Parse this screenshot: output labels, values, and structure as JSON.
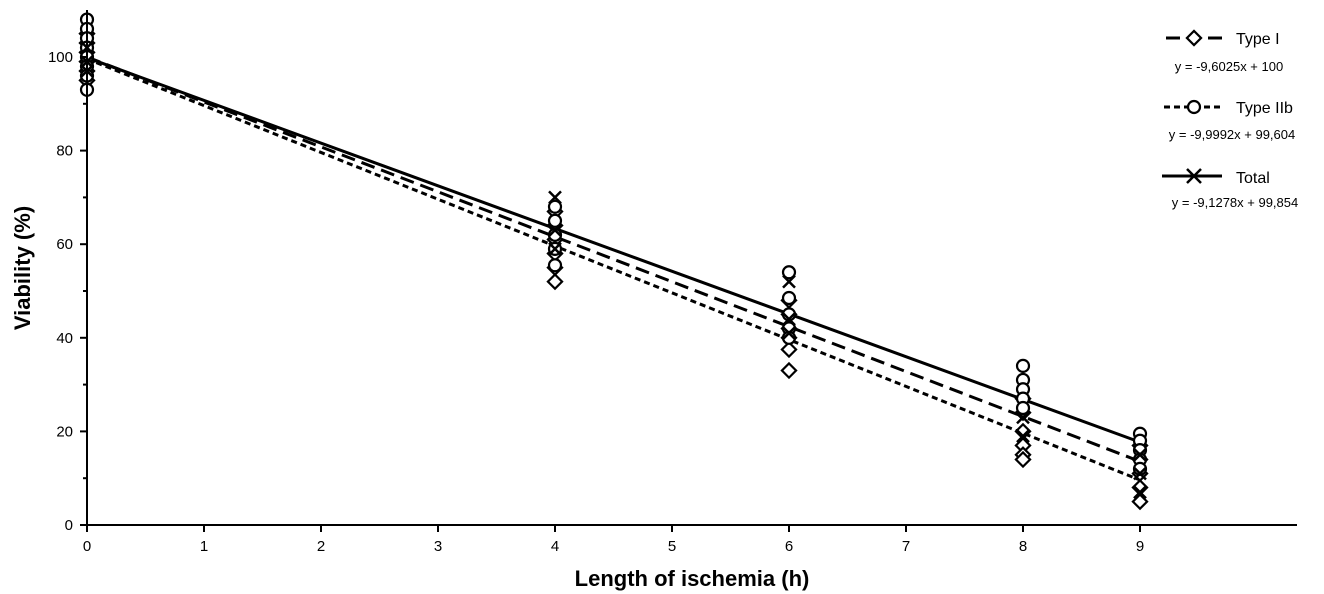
{
  "chart_data": {
    "type": "scatter",
    "xlabel": "Length of ischemia (h)",
    "ylabel": "Viability (%)",
    "xlim": [
      0,
      9.4
    ],
    "ylim": [
      0,
      108
    ],
    "xticks": [
      0,
      1,
      2,
      3,
      4,
      5,
      6,
      7,
      8,
      9
    ],
    "yticks": [
      0,
      20,
      40,
      60,
      80,
      100
    ],
    "grid": false,
    "legend_position": "top-right",
    "series": [
      {
        "name": "Type I",
        "equation": "y = -9,6025x + 100",
        "marker": "diamond",
        "line_style": "long-dash",
        "fit": {
          "slope": -9.6025,
          "intercept": 100,
          "x_range": [
            0,
            9
          ]
        },
        "points": [
          {
            "x": 0,
            "y": 105
          },
          {
            "x": 0,
            "y": 103
          },
          {
            "x": 0,
            "y": 101
          },
          {
            "x": 0,
            "y": 99
          },
          {
            "x": 0,
            "y": 97
          },
          {
            "x": 0,
            "y": 95
          },
          {
            "x": 4,
            "y": 67
          },
          {
            "x": 4,
            "y": 64
          },
          {
            "x": 4,
            "y": 61
          },
          {
            "x": 4,
            "y": 58
          },
          {
            "x": 4,
            "y": 55
          },
          {
            "x": 4,
            "y": 52
          },
          {
            "x": 6,
            "y": 48
          },
          {
            "x": 6,
            "y": 45
          },
          {
            "x": 6,
            "y": 42
          },
          {
            "x": 6,
            "y": 40
          },
          {
            "x": 6,
            "y": 37.5
          },
          {
            "x": 6,
            "y": 33
          },
          {
            "x": 8,
            "y": 27
          },
          {
            "x": 8,
            "y": 24
          },
          {
            "x": 8,
            "y": 20
          },
          {
            "x": 8,
            "y": 17
          },
          {
            "x": 8,
            "y": 15
          },
          {
            "x": 8,
            "y": 14
          },
          {
            "x": 9,
            "y": 17
          },
          {
            "x": 9,
            "y": 14
          },
          {
            "x": 9,
            "y": 11
          },
          {
            "x": 9,
            "y": 8
          },
          {
            "x": 9,
            "y": 5
          }
        ]
      },
      {
        "name": "Type IIb",
        "equation": "y = -9,9992x + 99,604",
        "marker": "circle",
        "line_style": "short-dash",
        "fit": {
          "slope": -9.9992,
          "intercept": 99.604,
          "x_range": [
            0,
            9
          ]
        },
        "points": [
          {
            "x": 0,
            "y": 108
          },
          {
            "x": 0,
            "y": 106
          },
          {
            "x": 0,
            "y": 104
          },
          {
            "x": 0,
            "y": 102
          },
          {
            "x": 0,
            "y": 100
          },
          {
            "x": 0,
            "y": 98
          },
          {
            "x": 0,
            "y": 96
          },
          {
            "x": 0,
            "y": 93
          },
          {
            "x": 4,
            "y": 68
          },
          {
            "x": 4,
            "y": 65
          },
          {
            "x": 4,
            "y": 62
          },
          {
            "x": 4,
            "y": 59
          },
          {
            "x": 4,
            "y": 55.5
          },
          {
            "x": 6,
            "y": 54
          },
          {
            "x": 6,
            "y": 48.5
          },
          {
            "x": 6,
            "y": 45
          },
          {
            "x": 6,
            "y": 42
          },
          {
            "x": 6,
            "y": 40
          },
          {
            "x": 8,
            "y": 34
          },
          {
            "x": 8,
            "y": 31
          },
          {
            "x": 8,
            "y": 29
          },
          {
            "x": 8,
            "y": 27
          },
          {
            "x": 8,
            "y": 25
          },
          {
            "x": 9,
            "y": 19.5
          },
          {
            "x": 9,
            "y": 18
          },
          {
            "x": 9,
            "y": 16
          },
          {
            "x": 9,
            "y": 14
          },
          {
            "x": 9,
            "y": 12
          }
        ]
      },
      {
        "name": "Total",
        "equation": "y = -9,1278x + 99,854",
        "marker": "x",
        "line_style": "solid",
        "fit": {
          "slope": -9.1278,
          "intercept": 99.854,
          "x_range": [
            0,
            9
          ]
        },
        "points": [
          {
            "x": 0,
            "y": 102
          },
          {
            "x": 0,
            "y": 99
          },
          {
            "x": 0,
            "y": 97
          },
          {
            "x": 4,
            "y": 70
          },
          {
            "x": 4,
            "y": 63
          },
          {
            "x": 4,
            "y": 59
          },
          {
            "x": 6,
            "y": 52
          },
          {
            "x": 6,
            "y": 44
          },
          {
            "x": 6,
            "y": 41
          },
          {
            "x": 8,
            "y": 23
          },
          {
            "x": 8,
            "y": 19
          },
          {
            "x": 9,
            "y": 15
          },
          {
            "x": 9,
            "y": 11
          },
          {
            "x": 9,
            "y": 7
          }
        ]
      }
    ]
  }
}
